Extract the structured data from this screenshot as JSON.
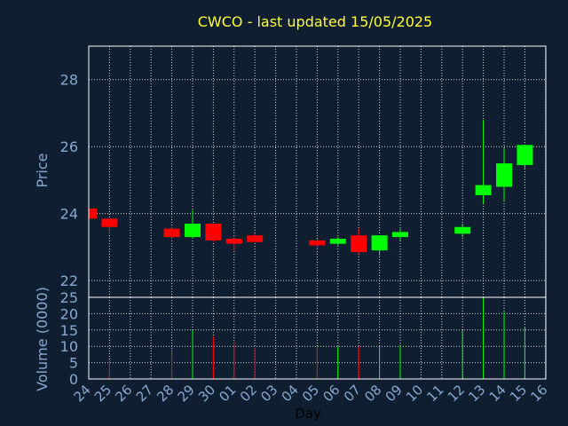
{
  "title": "CWCO - last updated 15/05/2025",
  "colors": {
    "background": "#0f1e30",
    "title": "#ffff33",
    "axis_text": "#8aa8cf",
    "grid": "#d8d8d8",
    "frame": "#ffffff",
    "up": "#00ff00",
    "down": "#ff0000"
  },
  "chart_data": [
    {
      "type": "candlestick",
      "ylabel": "Price",
      "ylim": [
        21.5,
        29.0
      ],
      "yticks": [
        22,
        24,
        26,
        28
      ],
      "grid": true,
      "categories": [
        "24",
        "25",
        "26",
        "27",
        "28",
        "29",
        "30",
        "01",
        "02",
        "03",
        "04",
        "05",
        "06",
        "07",
        "08",
        "09",
        "10",
        "11",
        "12",
        "13",
        "14",
        "15",
        "16"
      ],
      "candles": [
        {
          "day": "24",
          "open": 24.15,
          "high": 24.15,
          "low": 23.85,
          "close": 23.85
        },
        {
          "day": "25",
          "open": 23.85,
          "high": 23.85,
          "low": 23.4,
          "close": 23.6
        },
        {
          "day": "28",
          "open": 23.55,
          "high": 23.6,
          "low": 23.25,
          "close": 23.3
        },
        {
          "day": "29",
          "open": 23.3,
          "high": 24.1,
          "low": 23.25,
          "close": 23.7
        },
        {
          "day": "30",
          "open": 23.7,
          "high": 23.7,
          "low": 23.15,
          "close": 23.2
        },
        {
          "day": "01",
          "open": 23.25,
          "high": 23.3,
          "low": 22.9,
          "close": 23.1
        },
        {
          "day": "02",
          "open": 23.35,
          "high": 23.4,
          "low": 23.15,
          "close": 23.15
        },
        {
          "day": "05",
          "open": 23.2,
          "high": 23.25,
          "low": 22.95,
          "close": 23.05
        },
        {
          "day": "06",
          "open": 23.1,
          "high": 23.3,
          "low": 23.05,
          "close": 23.25
        },
        {
          "day": "07",
          "open": 23.35,
          "high": 23.55,
          "low": 22.8,
          "close": 22.85
        },
        {
          "day": "08",
          "open": 22.9,
          "high": 23.35,
          "low": 22.75,
          "close": 23.35
        },
        {
          "day": "09",
          "open": 23.3,
          "high": 23.55,
          "low": 23.2,
          "close": 23.45
        },
        {
          "day": "12",
          "open": 23.4,
          "high": 23.7,
          "low": 23.3,
          "close": 23.6
        },
        {
          "day": "13",
          "open": 24.55,
          "high": 26.8,
          "low": 24.3,
          "close": 24.85
        },
        {
          "day": "14",
          "open": 24.8,
          "high": 25.95,
          "low": 24.4,
          "close": 25.5
        },
        {
          "day": "15",
          "open": 25.45,
          "high": 26.05,
          "low": 25.35,
          "close": 26.05
        }
      ]
    },
    {
      "type": "bar",
      "ylabel": "Volume (0000)",
      "xlabel": "Day",
      "ylim": [
        0,
        25
      ],
      "yticks": [
        0,
        5,
        10,
        15,
        20,
        25
      ],
      "grid": true,
      "categories": [
        "24",
        "25",
        "26",
        "27",
        "28",
        "29",
        "30",
        "01",
        "02",
        "03",
        "04",
        "05",
        "06",
        "07",
        "08",
        "09",
        "10",
        "11",
        "12",
        "13",
        "14",
        "15",
        "16"
      ],
      "bars": [
        {
          "day": "25",
          "value": 6,
          "direction": "down"
        },
        {
          "day": "28",
          "value": 9,
          "direction": "down"
        },
        {
          "day": "29",
          "value": 15,
          "direction": "up"
        },
        {
          "day": "30",
          "value": 13,
          "direction": "down"
        },
        {
          "day": "01",
          "value": 11.5,
          "direction": "down"
        },
        {
          "day": "02",
          "value": 9.5,
          "direction": "down"
        },
        {
          "day": "05",
          "value": 10,
          "direction": "down"
        },
        {
          "day": "06",
          "value": 10,
          "direction": "up"
        },
        {
          "day": "07",
          "value": 10,
          "direction": "down"
        },
        {
          "day": "08",
          "value": 10,
          "direction": "up"
        },
        {
          "day": "09",
          "value": 10.5,
          "direction": "up"
        },
        {
          "day": "12",
          "value": 15,
          "direction": "up"
        },
        {
          "day": "13",
          "value": 25,
          "direction": "up"
        },
        {
          "day": "14",
          "value": 20.5,
          "direction": "up"
        },
        {
          "day": "15",
          "value": 16,
          "direction": "up"
        }
      ]
    }
  ]
}
